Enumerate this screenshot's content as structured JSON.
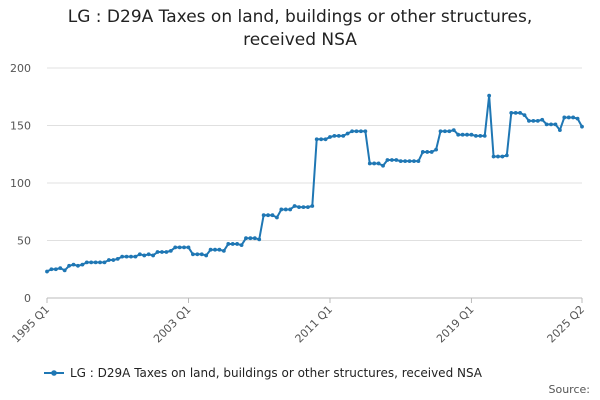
{
  "chart_data": {
    "type": "line",
    "title_lines": [
      "LG : D29A Taxes on land, buildings or other structures,",
      "received NSA"
    ],
    "xlabel": "",
    "ylabel": "",
    "x_tick_labels": [
      "1995 Q1",
      "2003 Q1",
      "2011 Q1",
      "2019 Q1",
      "2025 Q2"
    ],
    "ylim": [
      0,
      200
    ],
    "y_ticks": [
      0,
      50,
      100,
      150,
      200
    ],
    "grid": true,
    "legend_position": "bottom",
    "series": [
      {
        "name": "LG : D29A Taxes on land, buildings or other structures, received NSA",
        "color": "#1f77b4",
        "values": [
          23,
          25,
          25,
          26,
          24,
          28,
          29,
          28,
          29,
          31,
          31,
          31,
          31,
          31,
          33,
          33,
          34,
          36,
          36,
          36,
          36,
          38,
          37,
          38,
          37,
          40,
          40,
          40,
          41,
          44,
          44,
          44,
          44,
          38,
          38,
          38,
          37,
          42,
          42,
          42,
          41,
          47,
          47,
          47,
          46,
          52,
          52,
          52,
          51,
          72,
          72,
          72,
          70,
          77,
          77,
          77,
          80,
          79,
          79,
          79,
          80,
          138,
          138,
          138,
          140,
          141,
          141,
          141,
          143,
          145,
          145,
          145,
          145,
          117,
          117,
          117,
          115,
          120,
          120,
          120,
          119,
          119,
          119,
          119,
          119,
          127,
          127,
          127,
          129,
          145,
          145,
          145,
          146,
          142,
          142,
          142,
          142,
          141,
          141,
          141,
          176,
          123,
          123,
          123,
          124,
          161,
          161,
          161,
          159,
          154,
          154,
          154,
          155,
          151,
          151,
          151,
          146,
          157,
          157,
          157,
          156,
          149
        ]
      }
    ]
  },
  "legend": {
    "label": "LG : D29A Taxes on land, buildings or other structures, received NSA"
  },
  "source_label": "Source:"
}
